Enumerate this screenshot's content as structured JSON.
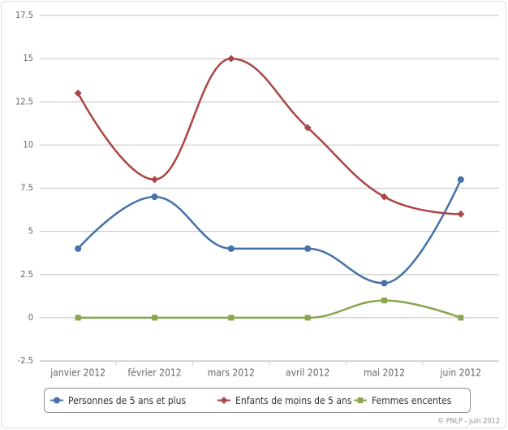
{
  "chart_data": {
    "type": "line",
    "categories": [
      "janvier 2012",
      "février 2012",
      "mars 2012",
      "avril 2012",
      "mai 2012",
      "juin 2012"
    ],
    "series": [
      {
        "name": "Personnes de 5 ans et plus",
        "color": "#4572A7",
        "marker": "circle",
        "values": [
          4,
          7,
          4,
          4,
          2,
          8
        ]
      },
      {
        "name": "Enfants de moins de 5 ans",
        "color": "#AA4643",
        "marker": "diamond",
        "values": [
          13,
          8,
          15,
          11,
          7,
          6
        ]
      },
      {
        "name": "Femmes encentes",
        "color": "#89A54E",
        "marker": "square",
        "values": [
          0,
          0,
          0,
          0,
          1,
          0
        ]
      }
    ],
    "ylim": [
      -2.5,
      17.5
    ],
    "yticks": [
      -2.5,
      0,
      2.5,
      5,
      7.5,
      10,
      12.5,
      15,
      17.5
    ],
    "grid": true,
    "smooth": true,
    "legend": "bottom",
    "credits": "© PNLP - juin 2012"
  }
}
